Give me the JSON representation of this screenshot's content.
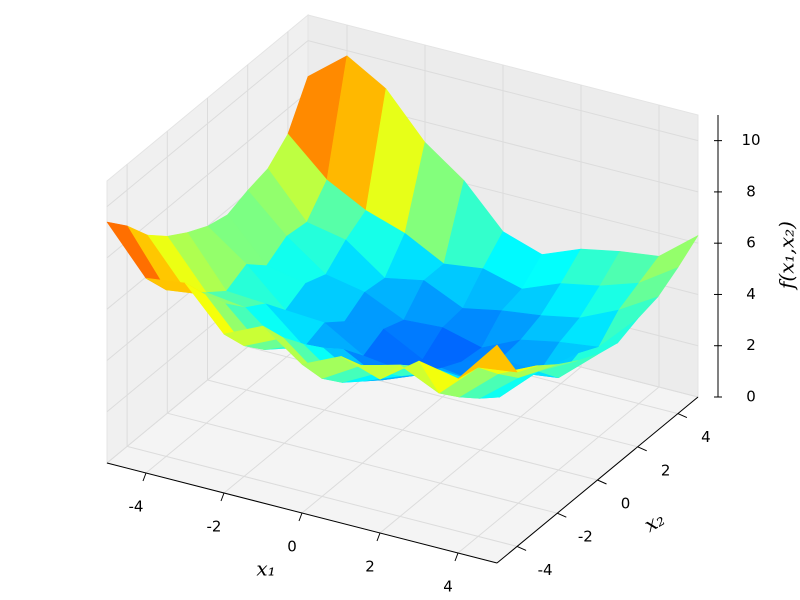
{
  "chart_data": {
    "type": "surface3d",
    "xlabel": "x₁",
    "ylabel": "x₂",
    "zlabel": "f(x₁,x₂)",
    "colormap": "jet",
    "x": [
      -5,
      -4,
      -3,
      -2,
      -1,
      0,
      1,
      2,
      3,
      4,
      5
    ],
    "y": [
      -5,
      -4,
      -3,
      -2,
      -1,
      0,
      1,
      2,
      3,
      4,
      5
    ],
    "z": [
      [
        9.4,
        7.6,
        7.8,
        6.2,
        6.9,
        5.8,
        6.5,
        6.0,
        7.1,
        6.8,
        8.5
      ],
      [
        8.6,
        6.5,
        6.7,
        5.1,
        5.8,
        4.6,
        5.5,
        5.9,
        5.2,
        6.6,
        6.8
      ],
      [
        7.6,
        5.8,
        5.7,
        4.3,
        4.9,
        3.8,
        4.6,
        5.2,
        4.4,
        5.7,
        6.4
      ],
      [
        6.9,
        5.1,
        4.9,
        3.7,
        4.1,
        3.2,
        3.8,
        4.4,
        3.7,
        4.9,
        5.8
      ],
      [
        6.4,
        4.5,
        4.4,
        3.1,
        3.4,
        2.6,
        3.2,
        3.5,
        3.1,
        4.5,
        5.3
      ],
      [
        6.0,
        4.9,
        3.5,
        3.4,
        2.5,
        2.3,
        2.8,
        2.6,
        3.4,
        3.6,
        4.9
      ],
      [
        5.8,
        4.2,
        3.9,
        2.8,
        2.9,
        2.1,
        2.4,
        2.9,
        2.8,
        3.9,
        4.7
      ],
      [
        6.1,
        4.7,
        3.6,
        3.3,
        2.6,
        2.7,
        2.3,
        3.0,
        3.3,
        3.5,
        5.0
      ],
      [
        6.3,
        4.6,
        4.3,
        3.2,
        3.5,
        2.8,
        3.1,
        3.3,
        3.6,
        4.3,
        5.2
      ],
      [
        7.0,
        5.6,
        4.8,
        4.3,
        3.5,
        3.7,
        3.3,
        3.9,
        4.2,
        4.7,
        5.7
      ],
      [
        8.6,
        9.8,
        8.9,
        7.2,
        6.1,
        4.5,
        4.0,
        4.6,
        4.9,
        5.1,
        6.3
      ]
    ],
    "xlim": [
      -5,
      5
    ],
    "ylim": [
      -5,
      5
    ],
    "zlim": [
      0,
      11
    ],
    "xticks": [
      -4,
      -2,
      0,
      2,
      4
    ],
    "yticks": [
      -4,
      -2,
      0,
      2,
      4
    ],
    "zticks": [
      0,
      2,
      4,
      6,
      8,
      10
    ],
    "grid": true
  }
}
